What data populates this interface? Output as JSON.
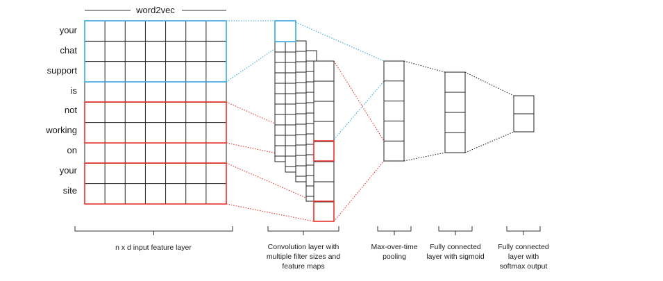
{
  "header": {
    "title": "word2vec"
  },
  "input": {
    "words": [
      "your",
      "chat",
      "support",
      "is",
      "not",
      "working",
      "on",
      "your",
      "site"
    ],
    "caption": "n x d input feature layer"
  },
  "captions": {
    "convolution": [
      "Convolution layer with",
      "multiple filter sizes and",
      "feature maps"
    ],
    "pooling": [
      "Max-over-time",
      "pooling"
    ],
    "fc_sigmoid": [
      "Fully connected",
      "layer with sigmoid"
    ],
    "fc_softmax": [
      "Fully connected",
      "layer with",
      "softmax output"
    ]
  },
  "colors": {
    "blue": "#3aa8e0",
    "red": "#e8322b",
    "grid": "#222222",
    "text": "#1a1a1a"
  }
}
